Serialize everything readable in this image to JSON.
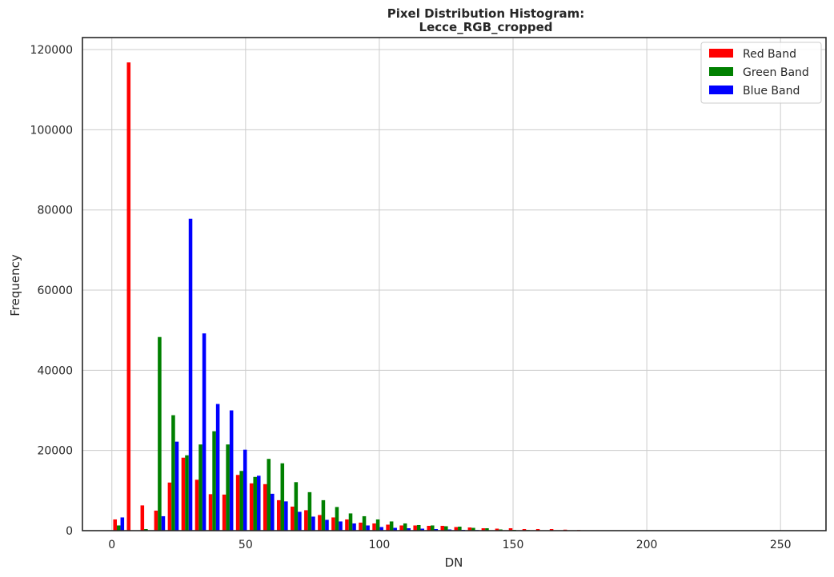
{
  "chart_data": {
    "type": "bar",
    "title_line1": "Pixel Distribution Histogram:",
    "title_line2": "Lecce_RGB_cropped",
    "xlabel": "DN",
    "ylabel": "Frequency",
    "xlim": [
      -11,
      267
    ],
    "ylim": [
      0,
      123000
    ],
    "xticks": [
      0,
      50,
      100,
      150,
      200,
      250
    ],
    "yticks": [
      0,
      20000,
      40000,
      60000,
      80000,
      100000,
      120000
    ],
    "grid": true,
    "legend_position": "top-right",
    "bin_width": 5.1,
    "bin_starts": [
      0,
      5.1,
      10.2,
      15.3,
      20.4,
      25.5,
      30.6,
      35.7,
      40.8,
      45.9,
      51.0,
      56.1,
      61.2,
      66.3,
      71.4,
      76.5,
      81.6,
      86.7,
      91.8,
      96.9,
      102.0,
      107.1,
      112.2,
      117.3,
      122.4,
      127.5,
      132.6,
      137.7,
      142.8,
      147.9,
      153.0,
      158.1,
      163.2,
      168.3,
      173.4,
      178.5,
      183.6,
      188.7,
      193.8,
      198.9,
      204.0,
      209.1,
      214.2,
      219.3,
      224.4,
      229.5,
      234.6,
      239.7,
      244.8,
      249.9
    ],
    "series": [
      {
        "name": "Red Band",
        "color": "#ff0000",
        "values": [
          2800,
          116800,
          6300,
          5000,
          12000,
          18200,
          12700,
          9100,
          9000,
          13900,
          11800,
          11600,
          7600,
          6000,
          5100,
          3900,
          3300,
          2800,
          2000,
          1800,
          1500,
          1300,
          1300,
          1200,
          1200,
          900,
          800,
          600,
          500,
          600,
          400,
          400,
          400,
          250,
          150,
          100,
          80,
          60,
          50,
          40,
          30,
          30,
          20,
          20,
          20,
          20,
          20,
          20,
          20,
          20
        ]
      },
      {
        "name": "Green Band",
        "color": "#008000",
        "values": [
          1300,
          0,
          400,
          48300,
          28800,
          18800,
          21500,
          24800,
          21500,
          14900,
          13400,
          17900,
          16800,
          12100,
          9600,
          7600,
          5900,
          4300,
          3600,
          2800,
          2300,
          1800,
          1400,
          1300,
          1100,
          1000,
          700,
          600,
          300,
          200,
          150,
          100,
          100,
          80,
          60,
          50,
          40,
          30,
          20,
          20,
          20,
          20,
          20,
          20,
          20,
          20,
          20,
          20,
          20,
          20
        ]
      },
      {
        "name": "Blue Band",
        "color": "#0000ff",
        "values": [
          3300,
          0,
          0,
          3600,
          22200,
          77800,
          49200,
          31600,
          30000,
          20200,
          13700,
          9200,
          7300,
          4700,
          3500,
          2700,
          2300,
          1800,
          1300,
          900,
          700,
          600,
          500,
          400,
          300,
          200,
          150,
          100,
          80,
          60,
          50,
          40,
          30,
          20,
          20,
          20,
          20,
          20,
          20,
          20,
          20,
          20,
          20,
          20,
          20,
          20,
          20,
          20,
          20,
          20
        ]
      }
    ]
  }
}
